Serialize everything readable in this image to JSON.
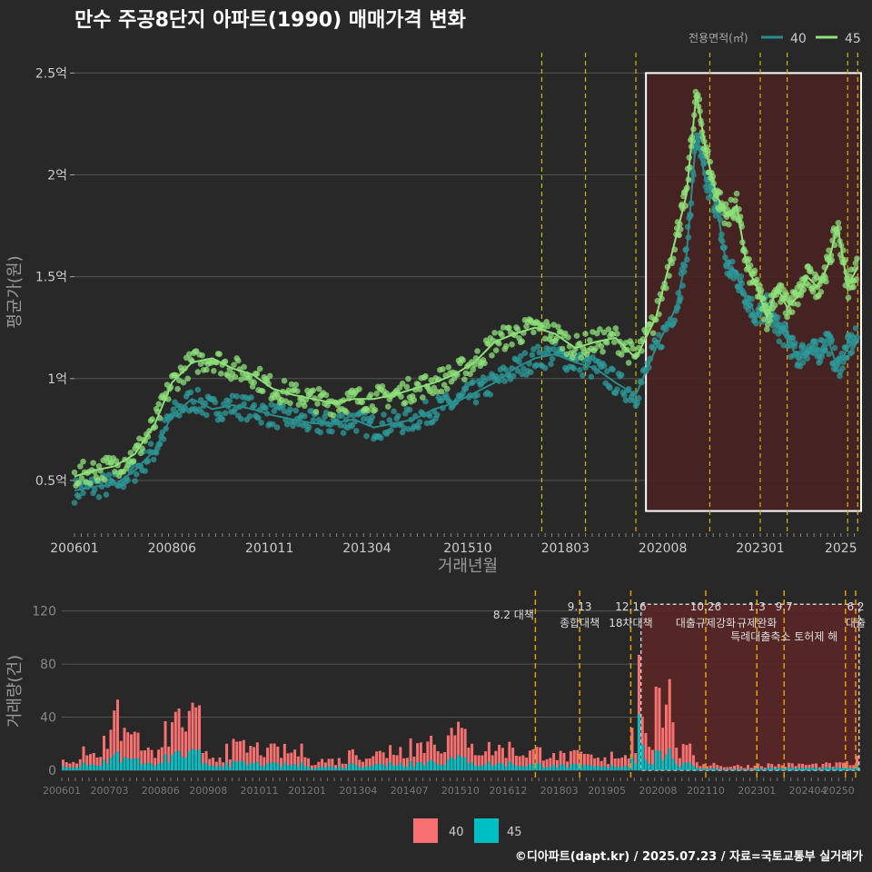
{
  "title": "만수 주공8단지 아파트(1990) 매매가격 변화",
  "footer": "©디아파트(dapt.kr) / 2025.07.23 / 자료=국토교통부 실거래가",
  "colors": {
    "background": "#282828",
    "series40_line": "#2a8c8c",
    "series40_point": "#2e9a9a",
    "series45_line": "#8ee07a",
    "series45_point": "#8ee07a",
    "volume40": "#f87171",
    "volume45": "#00bfc4",
    "policy_line": "#d4b800",
    "highlight_fill": "#4a2222",
    "grid": "#555555",
    "text": "#cccccc"
  },
  "chart_data": [
    {
      "id": "price",
      "type": "line",
      "title": "만수 주공8단지 아파트(1990) 매매가격 변화",
      "xlabel": "거래년월",
      "ylabel": "평균가(원)",
      "legend": {
        "title": "전용면적(㎡)",
        "placement": "top-right",
        "entries": [
          "40",
          "45"
        ]
      },
      "x_ticks": [
        "200601",
        "200806",
        "201011",
        "201304",
        "201510",
        "201803",
        "202008",
        "202301",
        "2025"
      ],
      "y_ticks": [
        "0.5억",
        "1억",
        "1.5억",
        "2억",
        "2.5억"
      ],
      "y_tick_values": [
        0.5,
        1,
        1.5,
        2,
        2.5
      ],
      "ylim": [
        0.25,
        2.6
      ],
      "xlim": [
        "2006-01",
        "2025-07"
      ],
      "grid": true,
      "highlight_range": [
        "2020-03",
        "2025-07"
      ],
      "policy_lines": [
        "2017-08",
        "2018-09",
        "2019-12",
        "2021-10",
        "2023-01",
        "2023-09",
        "2025-03",
        "2025-06"
      ],
      "series": [
        {
          "name": "40",
          "x": [
            "2006-01",
            "2006-07",
            "2007-01",
            "2007-07",
            "2008-01",
            "2008-06",
            "2008-12",
            "2009-06",
            "2009-12",
            "2010-06",
            "2010-12",
            "2011-06",
            "2011-12",
            "2012-06",
            "2012-12",
            "2013-06",
            "2013-12",
            "2014-06",
            "2014-12",
            "2015-06",
            "2015-12",
            "2016-06",
            "2016-12",
            "2017-06",
            "2017-12",
            "2018-06",
            "2018-12",
            "2019-06",
            "2019-12",
            "2020-06",
            "2020-12",
            "2021-03",
            "2021-06",
            "2021-09",
            "2021-12",
            "2022-03",
            "2022-06",
            "2022-09",
            "2022-12",
            "2023-03",
            "2023-06",
            "2023-09",
            "2023-12",
            "2024-03",
            "2024-06",
            "2024-09",
            "2024-12",
            "2025-03",
            "2025-06"
          ],
          "values": [
            0.45,
            0.47,
            0.48,
            0.55,
            0.65,
            0.82,
            0.9,
            0.85,
            0.87,
            0.85,
            0.82,
            0.8,
            0.78,
            0.78,
            0.8,
            0.76,
            0.78,
            0.8,
            0.85,
            0.88,
            0.93,
            0.98,
            1.05,
            1.1,
            1.12,
            1.08,
            1.05,
            0.98,
            0.92,
            1.15,
            1.35,
            1.6,
            2.2,
            1.95,
            1.85,
            1.55,
            1.5,
            1.4,
            1.3,
            1.35,
            1.25,
            1.2,
            1.1,
            1.15,
            1.12,
            1.2,
            1.05,
            1.15,
            1.2
          ]
        },
        {
          "name": "45",
          "x": [
            "2006-01",
            "2006-07",
            "2007-01",
            "2007-07",
            "2008-01",
            "2008-06",
            "2008-12",
            "2009-06",
            "2009-12",
            "2010-06",
            "2010-12",
            "2011-06",
            "2011-12",
            "2012-06",
            "2012-12",
            "2013-06",
            "2013-12",
            "2014-06",
            "2014-12",
            "2015-06",
            "2015-12",
            "2016-06",
            "2016-12",
            "2017-06",
            "2017-12",
            "2018-06",
            "2018-12",
            "2019-06",
            "2019-12",
            "2020-06",
            "2020-12",
            "2021-03",
            "2021-06",
            "2021-09",
            "2021-12",
            "2022-03",
            "2022-06",
            "2022-09",
            "2022-12",
            "2023-03",
            "2023-06",
            "2023-09",
            "2023-12",
            "2024-03",
            "2024-06",
            "2024-09",
            "2024-12",
            "2025-03",
            "2025-06"
          ],
          "values": [
            0.52,
            0.55,
            0.57,
            0.63,
            0.78,
            0.98,
            1.08,
            1.1,
            1.05,
            1.02,
            0.95,
            0.92,
            0.9,
            0.88,
            0.9,
            0.9,
            0.92,
            0.95,
            0.98,
            1.02,
            1.08,
            1.18,
            1.22,
            1.25,
            1.22,
            1.15,
            1.18,
            1.2,
            1.1,
            1.3,
            1.7,
            1.9,
            2.4,
            2.1,
            1.9,
            1.8,
            1.85,
            1.55,
            1.45,
            1.3,
            1.45,
            1.35,
            1.4,
            1.5,
            1.45,
            1.55,
            1.75,
            1.45,
            1.55
          ]
        }
      ]
    },
    {
      "id": "volume",
      "type": "bar",
      "xlabel": "",
      "ylabel": "거래량(건)",
      "legend": {
        "placement": "bottom",
        "entries": [
          "40",
          "45"
        ]
      },
      "x_ticks": [
        "200601",
        "200703",
        "200806",
        "200908",
        "201011",
        "201201",
        "201304",
        "201407",
        "201510",
        "201612",
        "201803",
        "201905",
        "202008",
        "202110",
        "202301",
        "202404",
        "20250"
      ],
      "y_ticks": [
        "0",
        "40",
        "80",
        "120"
      ],
      "y_tick_values": [
        0,
        40,
        80,
        120
      ],
      "ylim": [
        0,
        130
      ],
      "grid": true,
      "highlight_range": [
        "2020-03",
        "2025-07"
      ],
      "policy_lines": [
        "2017-08",
        "2018-09",
        "2019-12",
        "2021-10",
        "2023-01",
        "2023-09",
        "2025-03",
        "2025-06"
      ],
      "annotations": [
        {
          "date": "2017-08",
          "date_label": "8.2 대책",
          "label": ""
        },
        {
          "date": "2018-09",
          "date_label": "9.13",
          "label": "종합대책"
        },
        {
          "date": "2019-12",
          "date_label": "12.16",
          "label": "18차대책"
        },
        {
          "date": "2021-10",
          "date_label": "10.26",
          "label": "대출규제강화"
        },
        {
          "date": "2023-01",
          "date_label": "1.3",
          "label": "규제완화"
        },
        {
          "date": "2023-09",
          "date_label": "9.7",
          "label": "특례대출축소 토허제 해"
        },
        {
          "date": "2025-06",
          "date_label": "6.2",
          "label": "대출"
        }
      ],
      "x": [
        "2006-01",
        "2006-07",
        "2007-01",
        "2007-04",
        "2007-07",
        "2008-01",
        "2008-07",
        "2008-10",
        "2009-06",
        "2010-01",
        "2011-01",
        "2012-01",
        "2013-01",
        "2014-01",
        "2014-07",
        "2015-01",
        "2015-07",
        "2016-01",
        "2017-01",
        "2018-01",
        "2019-01",
        "2019-06",
        "2019-12",
        "2020-01",
        "2020-02",
        "2020-04",
        "2020-07",
        "2021-01",
        "2021-07",
        "2022-01",
        "2023-01",
        "2024-01",
        "2025-01",
        "2025-06"
      ],
      "series": [
        {
          "name": "40",
          "values": [
            5,
            12,
            18,
            33,
            22,
            10,
            25,
            30,
            8,
            14,
            12,
            6,
            10,
            13,
            17,
            18,
            22,
            14,
            12,
            9,
            6,
            10,
            22,
            8,
            45,
            20,
            48,
            12,
            4,
            3,
            3,
            3,
            4,
            8
          ]
        },
        {
          "name": "45",
          "values": [
            3,
            6,
            8,
            12,
            10,
            5,
            12,
            14,
            5,
            6,
            5,
            3,
            5,
            6,
            7,
            8,
            10,
            6,
            5,
            4,
            3,
            4,
            10,
            5,
            42,
            8,
            15,
            5,
            2,
            1,
            2,
            2,
            2,
            3
          ]
        }
      ]
    }
  ]
}
